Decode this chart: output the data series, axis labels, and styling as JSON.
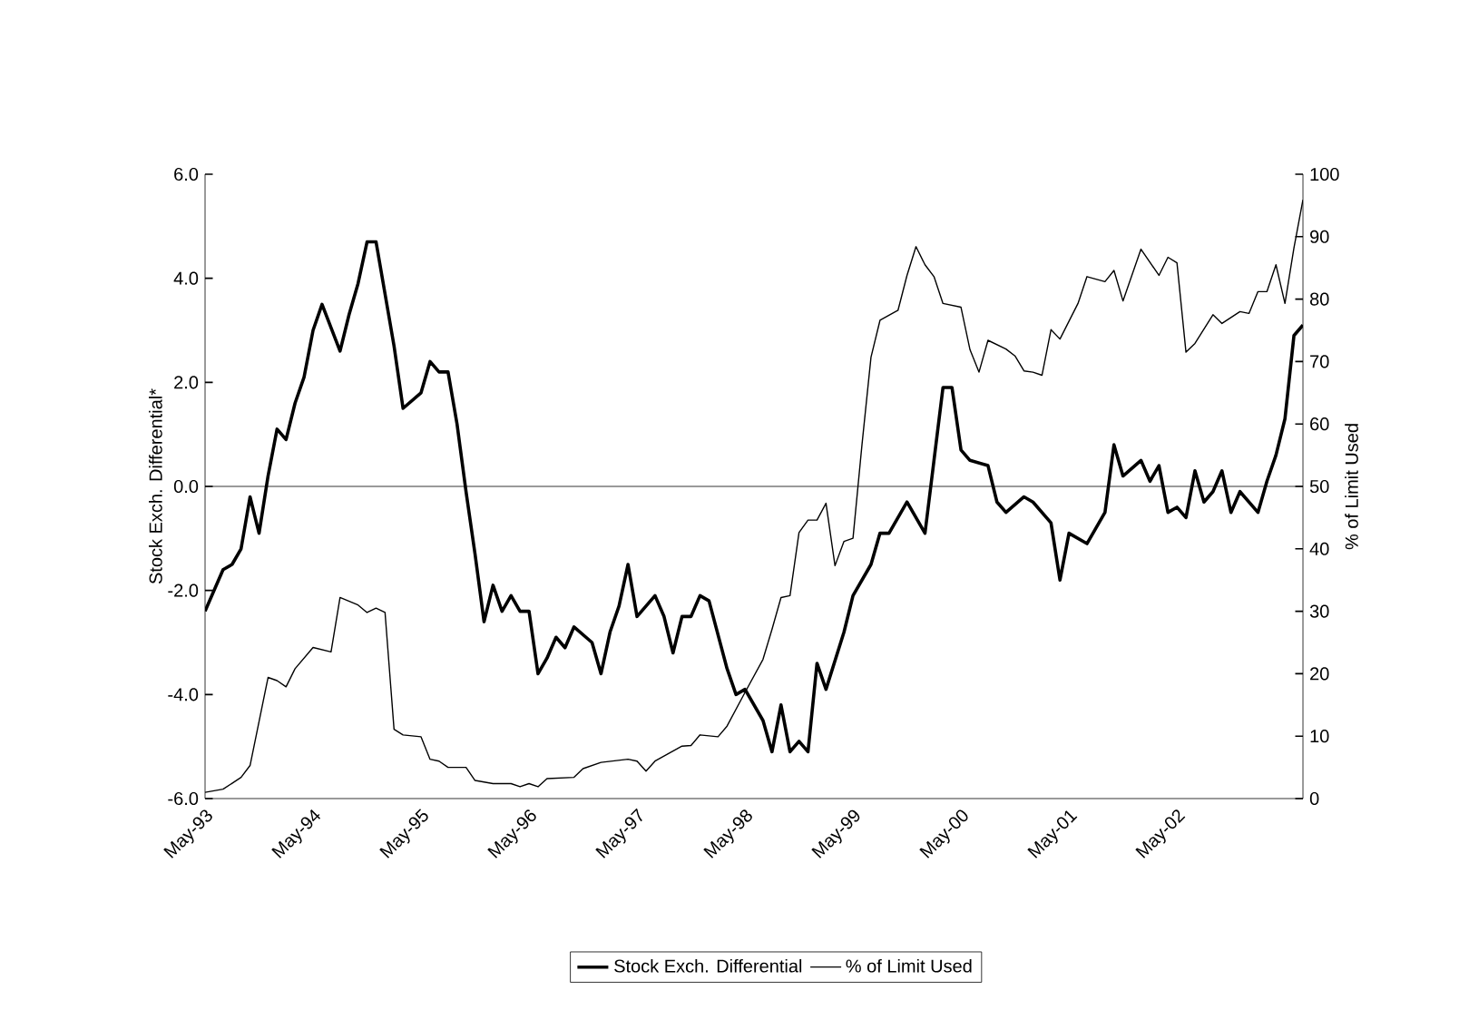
{
  "chart_data": {
    "type": "line",
    "ylabel": "Stock Exch. Differential*",
    "y2label": "% of Limit Used",
    "xlim": [
      "1993-05",
      "2003-07"
    ],
    "xticks": [
      {
        "value": "1993-05",
        "label": "May-93"
      },
      {
        "value": "1994-05",
        "label": "May-94"
      },
      {
        "value": "1995-05",
        "label": "May-95"
      },
      {
        "value": "1996-05",
        "label": "May-96"
      },
      {
        "value": "1997-05",
        "label": "May-97"
      },
      {
        "value": "1998-05",
        "label": "May-98"
      },
      {
        "value": "1999-05",
        "label": "May-99"
      },
      {
        "value": "2000-05",
        "label": "May-00"
      },
      {
        "value": "2001-05",
        "label": "May-01"
      },
      {
        "value": "2002-05",
        "label": "May-02"
      }
    ],
    "ylim": [
      -6,
      6
    ],
    "yticks": [
      {
        "value": -6,
        "label": "-6.0"
      },
      {
        "value": -4,
        "label": "-4.0"
      },
      {
        "value": -2,
        "label": "-2.0"
      },
      {
        "value": 0,
        "label": "0.0"
      },
      {
        "value": 2,
        "label": "2.0"
      },
      {
        "value": 4,
        "label": "4.0"
      },
      {
        "value": 6,
        "label": "6.0"
      }
    ],
    "y2lim": [
      0,
      100
    ],
    "y2ticks": [
      0,
      10,
      20,
      30,
      40,
      50,
      60,
      70,
      80,
      90,
      100
    ],
    "ref_lines": [
      {
        "axis": "y",
        "value": 0,
        "color": "#000000"
      }
    ],
    "legend": "bottom",
    "series": [
      {
        "name": "Stock Exch. Differential",
        "color": "#000000",
        "axis": "y",
        "x": [
          "1993-05",
          "1993-07",
          "1993-08",
          "1993-09",
          "1993-10",
          "1993-11",
          "1993-12",
          "1994-01",
          "1994-02",
          "1994-03",
          "1994-04",
          "1994-05",
          "1994-06",
          "1994-08",
          "1994-09",
          "1994-10",
          "1994-11",
          "1994-12",
          "1995-02",
          "1995-03",
          "1995-05",
          "1995-06",
          "1995-07",
          "1995-08",
          "1995-09",
          "1995-10",
          "1995-11",
          "1995-12",
          "1996-01",
          "1996-02",
          "1996-03",
          "1996-04",
          "1996-05",
          "1996-06",
          "1996-07",
          "1996-08",
          "1996-09",
          "1996-10",
          "1996-12",
          "1997-01",
          "1997-02",
          "1997-03",
          "1997-04",
          "1997-05",
          "1997-07",
          "1997-08",
          "1997-09",
          "1997-10",
          "1997-11",
          "1997-12",
          "1998-01",
          "1998-03",
          "1998-04",
          "1998-05",
          "1998-07",
          "1998-08",
          "1998-09",
          "1998-10",
          "1998-11",
          "1998-12",
          "1999-01",
          "1999-02",
          "1999-04",
          "1999-05",
          "1999-07",
          "1999-08",
          "1999-09",
          "1999-11",
          "2000-01",
          "2000-02",
          "2000-03",
          "2000-04",
          "2000-05",
          "2000-06",
          "2000-08",
          "2000-09",
          "2000-10",
          "2000-12",
          "2001-01",
          "2001-03",
          "2001-04",
          "2001-05",
          "2001-07",
          "2001-08",
          "2001-09",
          "2001-10",
          "2001-11",
          "2002-01",
          "2002-02",
          "2002-03",
          "2002-04",
          "2002-05",
          "2002-06",
          "2002-07",
          "2002-08",
          "2002-09",
          "2002-10",
          "2002-11",
          "2002-12",
          "2003-02",
          "2003-03",
          "2003-04",
          "2003-05",
          "2003-06",
          "2003-07"
        ],
        "values": [
          -2.4,
          -1.6,
          -1.5,
          -1.2,
          -0.2,
          -0.9,
          0.2,
          1.1,
          0.9,
          1.6,
          2.1,
          3.0,
          3.5,
          2.6,
          3.3,
          3.9,
          4.7,
          4.7,
          2.7,
          1.5,
          1.8,
          2.4,
          2.2,
          2.2,
          1.2,
          -0.1,
          -1.3,
          -2.6,
          -1.9,
          -2.4,
          -2.1,
          -2.4,
          -2.4,
          -3.6,
          -3.3,
          -2.9,
          -3.1,
          -2.7,
          -3.0,
          -3.6,
          -2.8,
          -2.3,
          -1.5,
          -2.5,
          -2.1,
          -2.5,
          -3.2,
          -2.5,
          -2.5,
          -2.1,
          -2.2,
          -3.5,
          -4.0,
          -3.9,
          -4.5,
          -5.1,
          -4.2,
          -5.1,
          -4.9,
          -5.1,
          -3.4,
          -3.9,
          -2.8,
          -2.1,
          -1.5,
          -0.9,
          -0.9,
          -0.3,
          -0.9,
          0.5,
          1.9,
          1.9,
          0.7,
          0.5,
          0.4,
          -0.3,
          -0.5,
          -0.2,
          -0.3,
          -0.7,
          -1.8,
          -0.9,
          -1.1,
          -0.8,
          -0.5,
          0.8,
          0.2,
          0.5,
          0.1,
          0.4,
          -0.5,
          -0.4,
          -0.6,
          0.3,
          -0.3,
          -0.1,
          0.3,
          -0.5,
          -0.1,
          -0.5,
          0.1,
          0.6,
          1.3,
          2.9,
          3.1
        ]
      },
      {
        "name": "% of Limit Used",
        "color": "#000000",
        "axis": "y2",
        "x": [
          "1993-05",
          "1993-07",
          "1993-09",
          "1993-10",
          "1993-12",
          "1994-01",
          "1994-02",
          "1994-03",
          "1994-05",
          "1994-07",
          "1994-08",
          "1994-10",
          "1994-11",
          "1994-12",
          "1995-01",
          "1995-02",
          "1995-03",
          "1995-05",
          "1995-06",
          "1995-07",
          "1995-08",
          "1995-10",
          "1995-11",
          "1996-01",
          "1996-03",
          "1996-04",
          "1996-05",
          "1996-06",
          "1996-07",
          "1996-10",
          "1996-11",
          "1997-01",
          "1997-04",
          "1997-05",
          "1997-06",
          "1997-07",
          "1997-10",
          "1997-11",
          "1997-12",
          "1998-02",
          "1998-03",
          "1998-05",
          "1998-07",
          "1998-08",
          "1998-09",
          "1998-10",
          "1998-11",
          "1998-12",
          "1999-01",
          "1999-02",
          "1999-03",
          "1999-04",
          "1999-05",
          "1999-06",
          "1999-07",
          "1999-08",
          "1999-10",
          "1999-11",
          "1999-12",
          "2000-01",
          "2000-02",
          "2000-03",
          "2000-05",
          "2000-06",
          "2000-07",
          "2000-08",
          "2000-10",
          "2000-11",
          "2000-12",
          "2001-01",
          "2001-02",
          "2001-03",
          "2001-04",
          "2001-06",
          "2001-07",
          "2001-09",
          "2001-10",
          "2001-11",
          "2002-01",
          "2002-03",
          "2002-04",
          "2002-05",
          "2002-06",
          "2002-07",
          "2002-09",
          "2002-10",
          "2002-12",
          "2003-01",
          "2003-02",
          "2003-03",
          "2003-04",
          "2003-05",
          "2003-06",
          "2003-07"
        ],
        "values": [
          1,
          1.5,
          3.4,
          5.3,
          19.4,
          18.9,
          17.9,
          20.8,
          24.2,
          23.5,
          32.2,
          31,
          29.8,
          30.5,
          29.8,
          11.1,
          10.2,
          9.9,
          6.3,
          6.0,
          5.0,
          5.0,
          2.9,
          2.4,
          2.4,
          1.9,
          2.4,
          1.9,
          3.2,
          3.4,
          4.8,
          5.8,
          6.3,
          6.0,
          4.4,
          6.0,
          8.4,
          8.5,
          10.2,
          9.9,
          11.6,
          17.0,
          22.3,
          27.1,
          32.2,
          32.5,
          42.6,
          44.6,
          44.6,
          47.3,
          37.3,
          41.2,
          41.7,
          56.7,
          70.7,
          76.6,
          78.2,
          83.8,
          88.4,
          85.5,
          83.6,
          79.3,
          78.7,
          71.9,
          68.3,
          73.4,
          72,
          70.9,
          68.5,
          68.3,
          67.8,
          75.1,
          73.6,
          79.3,
          83.6,
          82.8,
          84.6,
          79.7,
          88.0,
          83.8,
          86.7,
          85.8,
          71.5,
          72.9,
          77.5,
          76.1,
          78.0,
          77.7,
          81.2,
          81.2,
          85.5,
          79.3,
          88.2,
          95.9
        ]
      }
    ]
  }
}
